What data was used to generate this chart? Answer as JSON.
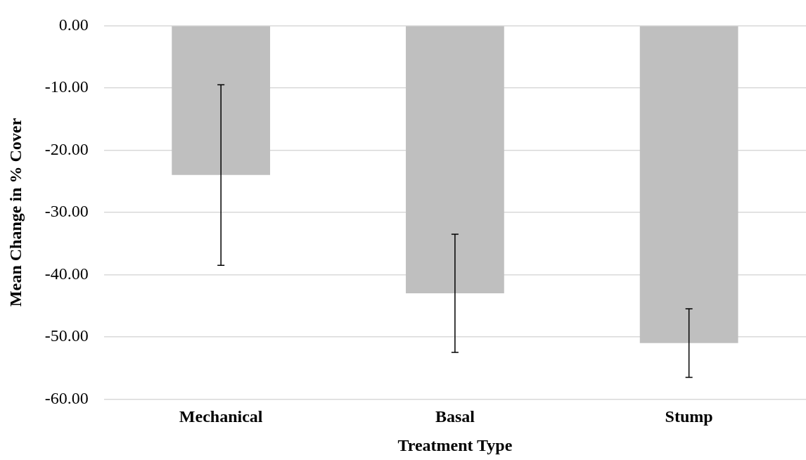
{
  "chart_data": {
    "type": "bar",
    "xlabel": "Treatment Type",
    "ylabel": "Mean Change in % Cover",
    "categories": [
      "Mechanical",
      "Basal",
      "Stump"
    ],
    "values": [
      -24,
      -43,
      -51
    ],
    "errors": [
      14.5,
      9.5,
      5.5
    ],
    "color": "#bfbfbf",
    "ylim": [
      -60,
      0
    ],
    "yticks": [
      {
        "value": -60,
        "label": "-60.00"
      },
      {
        "value": -50,
        "label": "-50.00"
      },
      {
        "value": -40,
        "label": "-40.00"
      },
      {
        "value": -30,
        "label": "-30.00"
      },
      {
        "value": -20,
        "label": "-20.00"
      },
      {
        "value": -10,
        "label": "-10.00"
      },
      {
        "value": 0,
        "label": "0.00"
      }
    ],
    "grid": "y",
    "legend": false
  }
}
